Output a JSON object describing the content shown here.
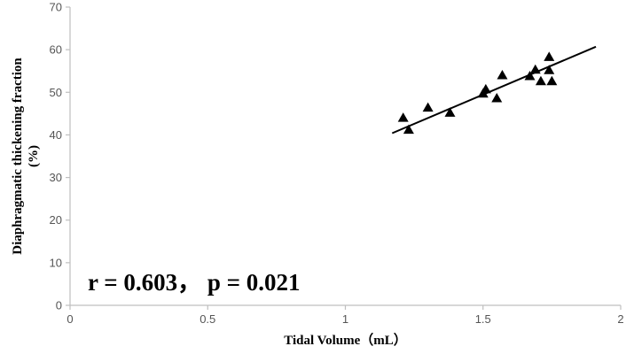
{
  "chart_data": {
    "type": "scatter",
    "title": "",
    "xlabel": "Tidal Volume（mL）",
    "ylabel_line1": "Diaphragmatic thickening fraction",
    "ylabel_line2": "(%)",
    "xlim": [
      0,
      2
    ],
    "ylim": [
      0,
      70
    ],
    "x_ticks": [
      0,
      0.5,
      1,
      1.5,
      2
    ],
    "x_tick_labels": [
      "0",
      "0.5",
      "1",
      "1.5",
      "2"
    ],
    "y_ticks": [
      0,
      10,
      20,
      30,
      40,
      50,
      60,
      70
    ],
    "y_tick_labels": [
      "0",
      "10",
      "20",
      "30",
      "40",
      "50",
      "60",
      "70"
    ],
    "grid": false,
    "marker": "triangle",
    "series": [
      {
        "points": [
          {
            "x": 1.21,
            "y": 44.0
          },
          {
            "x": 1.23,
            "y": 41.2
          },
          {
            "x": 1.3,
            "y": 46.4
          },
          {
            "x": 1.38,
            "y": 45.2
          },
          {
            "x": 1.5,
            "y": 49.7
          },
          {
            "x": 1.51,
            "y": 50.7
          },
          {
            "x": 1.55,
            "y": 48.6
          },
          {
            "x": 1.57,
            "y": 54.0
          },
          {
            "x": 1.67,
            "y": 53.8
          },
          {
            "x": 1.69,
            "y": 55.3
          },
          {
            "x": 1.71,
            "y": 52.6
          },
          {
            "x": 1.74,
            "y": 58.3
          },
          {
            "x": 1.74,
            "y": 55.2
          },
          {
            "x": 1.75,
            "y": 52.6
          }
        ]
      }
    ],
    "trendline": {
      "x": [
        1.17,
        1.91
      ],
      "y": [
        40.4,
        60.7
      ]
    },
    "annotation": "r = 0.603， p = 0.021",
    "colors": {
      "marker": "#000000",
      "axis": "#bfbfbf",
      "text": "#555555"
    }
  }
}
